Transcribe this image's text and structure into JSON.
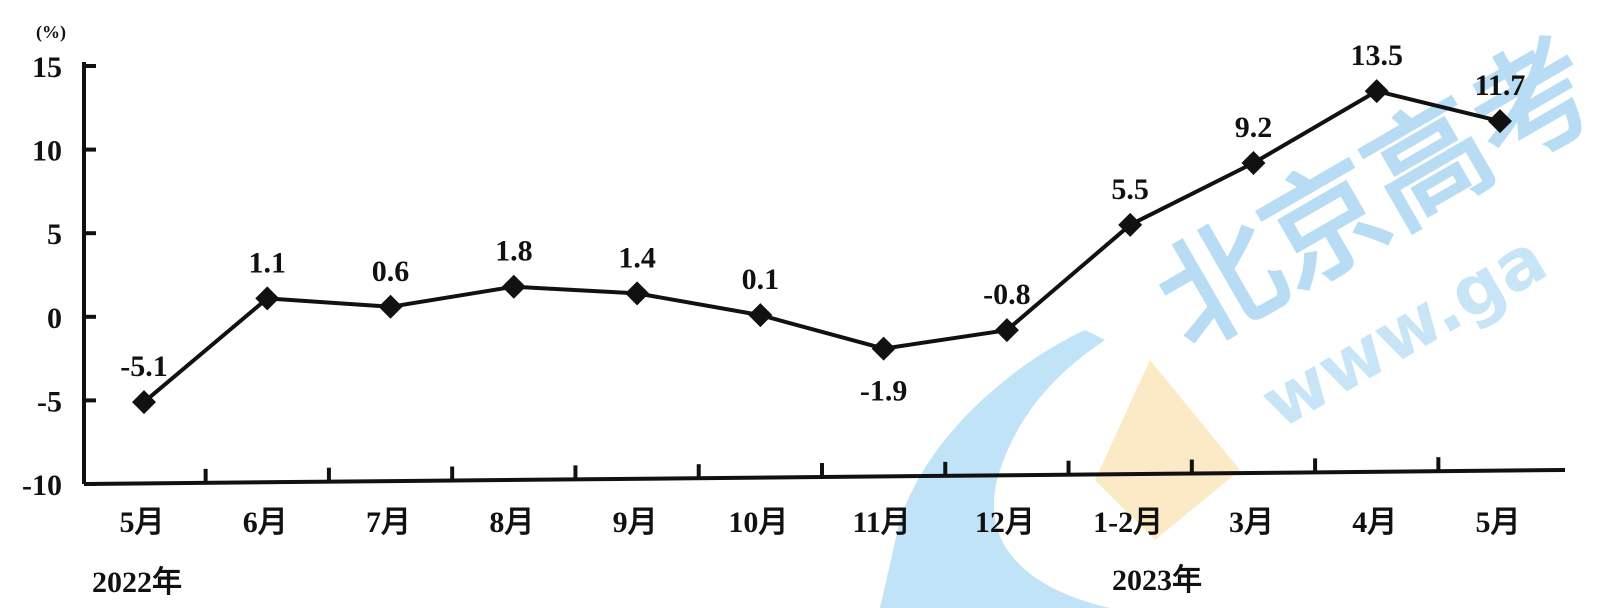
{
  "chart_data": {
    "type": "line",
    "unit_label": "(%)",
    "ylim": [
      -10,
      15
    ],
    "y_ticks": [
      "15",
      "10",
      "5",
      "0",
      "-5",
      "-10"
    ],
    "categories": [
      "5月",
      "6月",
      "7月",
      "8月",
      "9月",
      "10月",
      "11月",
      "12月",
      "1-2月",
      "3月",
      "4月",
      "5月"
    ],
    "year_labels": [
      "2022年",
      "2023年"
    ],
    "series": [
      {
        "values": [
          -5.1,
          1.1,
          0.6,
          1.8,
          1.4,
          0.1,
          -1.9,
          -0.8,
          5.5,
          9.2,
          13.5,
          11.7
        ]
      }
    ],
    "data_labels": [
      "-5.1",
      "1.1",
      "0.6",
      "1.8",
      "1.4",
      "0.1",
      "-1.9",
      "-0.8",
      "5.5",
      "9.2",
      "13.5",
      "11.7"
    ],
    "grid": false,
    "legend": "none",
    "marker": "diamond",
    "line_color": "#111111"
  },
  "watermark": {
    "text_cn": "北京高考",
    "text_url": "www.ga",
    "colors": [
      "#6ab7e6",
      "#f7c873"
    ]
  }
}
